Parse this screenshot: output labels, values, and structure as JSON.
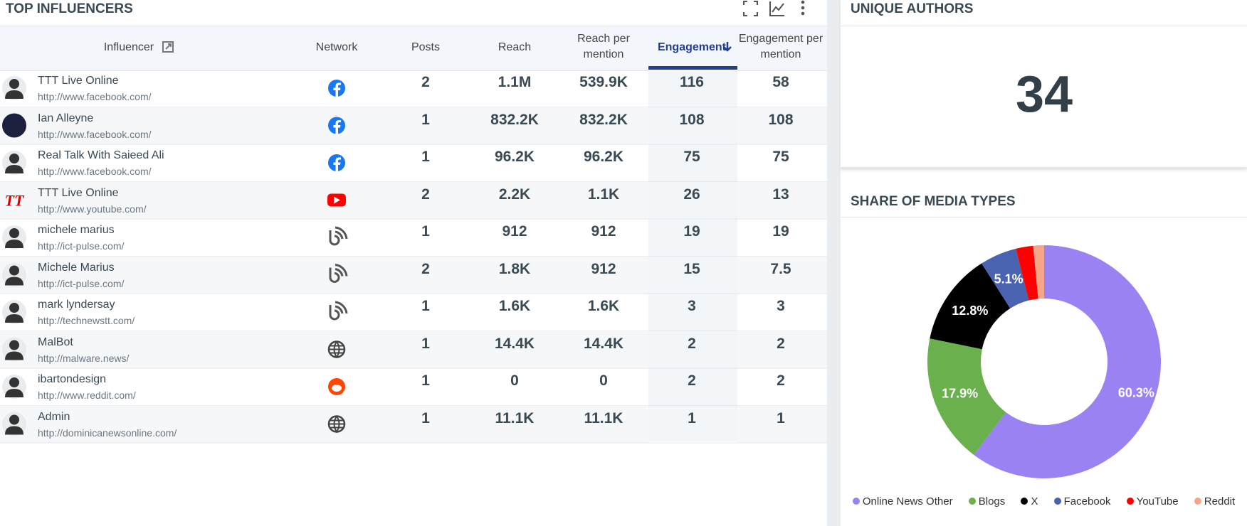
{
  "header": {
    "title": "TOP INFLUENCERS"
  },
  "table": {
    "columns": [
      "Influencer",
      "Network",
      "Posts",
      "Reach",
      "Reach per mention",
      "Engagement",
      "Engagement per mention"
    ],
    "rows": [
      [
        "TTT Live Online",
        "http://www.facebook.com/",
        2,
        "1.1M",
        "539.9K",
        116,
        58
      ],
      [
        "Ian Alleyne",
        "http://www.facebook.com/",
        1,
        "832.2K",
        "832.2K",
        108,
        108
      ],
      [
        "Real Talk With Saieed Ali",
        "http://www.facebook.com/",
        1,
        "96.2K",
        "96.2K",
        75,
        75
      ],
      [
        "TTT Live Online",
        "http://www.youtube.com/",
        2,
        "2.2K",
        "1.1K",
        26,
        13
      ],
      [
        "michele marius",
        "http://ict-pulse.com/",
        1,
        912,
        912,
        19,
        19
      ],
      [
        "Michele Marius",
        "http://ict-pulse.com/",
        2,
        "1.8K",
        912,
        15,
        7.5
      ],
      [
        "mark lyndersay",
        "http://technewstt.com/",
        1,
        "1.6K",
        "1.6K",
        3,
        3
      ],
      [
        "MalBot",
        "http://malware.news/",
        1,
        "14.4K",
        "14.4K",
        2,
        2
      ],
      [
        "ibartondesign",
        "http://www.reddit.com/",
        1,
        0,
        0,
        2,
        2
      ],
      [
        "Admin",
        "http://dominicanewsonline.com/",
        1,
        "11.1K",
        "11.1K",
        1,
        1
      ]
    ]
  },
  "authors": {
    "title": "UNIQUE AUTHORS",
    "value": 34
  },
  "chart_data": {
    "type": "donut",
    "title": "SHARE OF MEDIA TYPES",
    "categories": [
      "Online News Other",
      "Blogs",
      "X",
      "Facebook",
      "YouTube",
      "Reddit"
    ],
    "values": [
      60.3,
      17.9,
      12.8,
      5.1,
      2.4,
      1.5
    ],
    "value_labels": [
      "60.3%",
      "17.9%",
      "12.8%",
      "5.1%",
      null,
      null
    ],
    "colors": [
      "#9b82f3",
      "#6ab04c",
      "#000000",
      "#4a63b0",
      "#ff0000",
      "#f4a58a"
    ]
  }
}
